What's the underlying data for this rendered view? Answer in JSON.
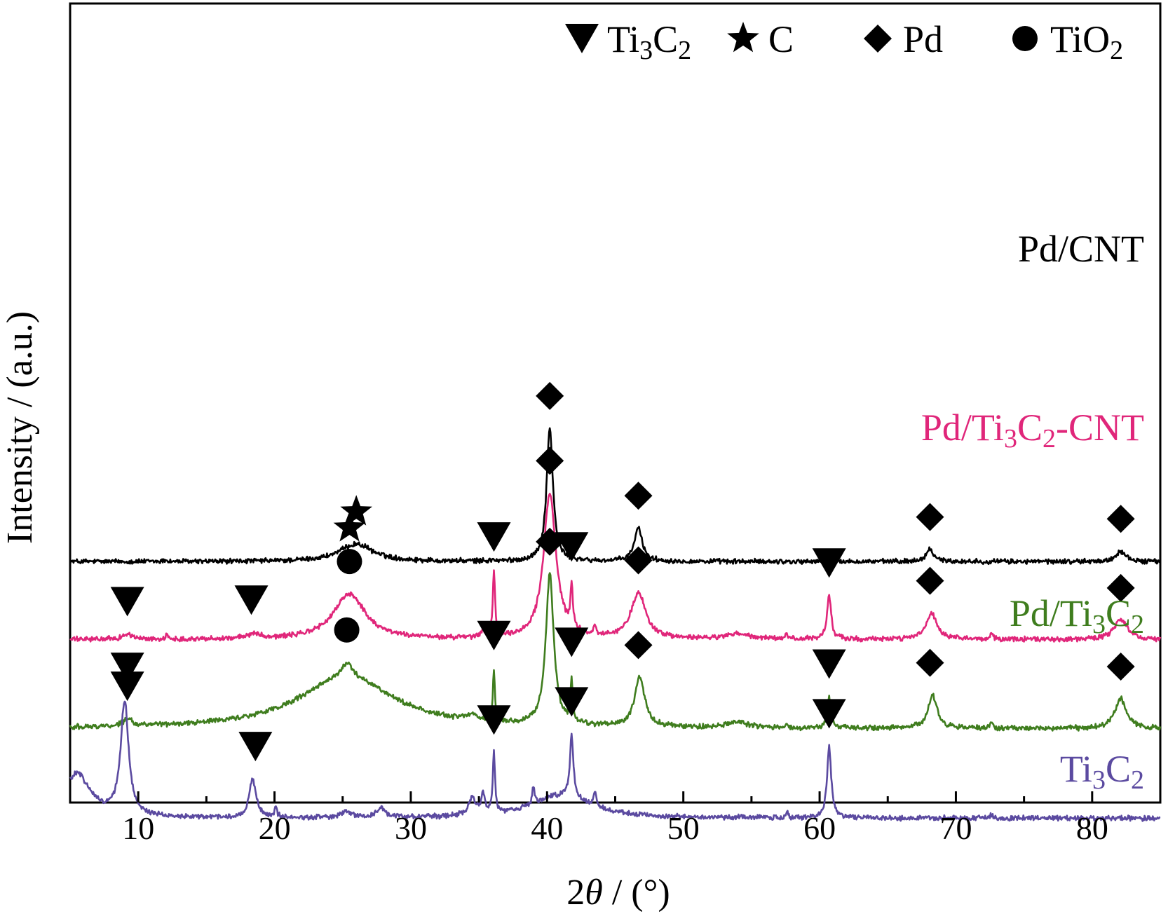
{
  "chart_data": {
    "type": "line",
    "xlabel_prefix": "2",
    "xlabel_symbol": "θ",
    "xlabel_suffix": " / (°)",
    "ylabel": "Intensity / (a.u.)",
    "xlim": [
      5,
      85
    ],
    "xticks": [
      "10",
      "20",
      "30",
      "40",
      "50",
      "60",
      "70",
      "80"
    ],
    "xtick_values": [
      10,
      20,
      30,
      40,
      50,
      60,
      70,
      80
    ],
    "legend": [
      {
        "marker": "down-triangle",
        "base": "Ti",
        "sub1": "3",
        "mid": "C",
        "sub2": "2",
        "tail": ""
      },
      {
        "marker": "star",
        "base": "C",
        "sub1": "",
        "mid": "",
        "sub2": "",
        "tail": ""
      },
      {
        "marker": "diamond",
        "base": "Pd",
        "sub1": "",
        "mid": "",
        "sub2": "",
        "tail": ""
      },
      {
        "marker": "circle",
        "base": "TiO",
        "sub1": "",
        "mid": "",
        "sub2": "2",
        "tail": ""
      }
    ],
    "series": [
      {
        "name_parts": {
          "base": "Pd/CNT",
          "sub1": "",
          "mid": "",
          "sub2": "",
          "tail": ""
        },
        "color": "#000000",
        "baseline": 0.915,
        "peaks": [
          [
            26,
            0.1,
            1.5
          ],
          [
            40.2,
            0.76,
            0.28
          ],
          [
            46.7,
            0.19,
            0.35
          ],
          [
            68.1,
            0.07,
            0.35
          ],
          [
            82.1,
            0.06,
            0.4
          ],
          [
            12.0,
            0.01,
            0.1
          ],
          [
            36.0,
            0.008,
            0.1
          ]
        ],
        "markers": [
          {
            "type": "star",
            "x": 26
          },
          {
            "type": "diamond",
            "x": 40.2
          },
          {
            "type": "diamond",
            "x": 46.7
          },
          {
            "type": "diamond",
            "x": 68.1
          },
          {
            "type": "diamond",
            "x": 82.1
          }
        ]
      },
      {
        "name_parts": {
          "base": "Pd/Ti",
          "sub1": "3",
          "mid": "C",
          "sub2": "2",
          "tail": "-CNT"
        },
        "color": "#e0267a",
        "baseline": 0.47,
        "peaks": [
          [
            25.5,
            0.26,
            1.4
          ],
          [
            40.2,
            0.83,
            0.55
          ],
          [
            36.1,
            0.38,
            0.1
          ],
          [
            41.8,
            0.25,
            0.1
          ],
          [
            46.7,
            0.26,
            0.65
          ],
          [
            60.7,
            0.25,
            0.18
          ],
          [
            68.2,
            0.15,
            0.45
          ],
          [
            82.1,
            0.11,
            0.6
          ],
          [
            9.2,
            0.03,
            0.4
          ],
          [
            18.5,
            0.03,
            0.5
          ],
          [
            35.3,
            0.06,
            0.1
          ],
          [
            43.5,
            0.06,
            0.1
          ],
          [
            72.6,
            0.04,
            0.1
          ],
          [
            57.6,
            0.03,
            0.1
          ],
          [
            54.0,
            0.03,
            1.0
          ],
          [
            12.1,
            0.02,
            0.1
          ]
        ],
        "markers": [
          {
            "type": "down-triangle",
            "x": 9.2
          },
          {
            "type": "down-triangle",
            "x": 18.3
          },
          {
            "type": "circle",
            "x": 25.5
          },
          {
            "type": "star",
            "x": 25.5
          },
          {
            "type": "down-triangle",
            "x": 36.1
          },
          {
            "type": "diamond",
            "x": 40.2
          },
          {
            "type": "down-triangle",
            "x": 41.8
          },
          {
            "type": "diamond",
            "x": 46.7
          },
          {
            "type": "down-triangle",
            "x": 60.7
          },
          {
            "type": "diamond",
            "x": 68.1
          },
          {
            "type": "diamond",
            "x": 82.1
          }
        ]
      },
      {
        "name_parts": {
          "base": "Pd/Ti",
          "sub1": "3",
          "mid": "C",
          "sub2": "2",
          "tail": ""
        },
        "color": "#3f7d1e",
        "baseline": -0.04,
        "peaks": [
          [
            25.3,
            0.3,
            4.2
          ],
          [
            40.2,
            0.86,
            0.35
          ],
          [
            36.1,
            0.3,
            0.08
          ],
          [
            41.8,
            0.25,
            0.08
          ],
          [
            46.8,
            0.28,
            0.45
          ],
          [
            60.7,
            0.18,
            0.15
          ],
          [
            68.3,
            0.19,
            0.4
          ],
          [
            82.1,
            0.17,
            0.5
          ],
          [
            25.3,
            0.08,
            0.4
          ],
          [
            9.2,
            0.04,
            0.4
          ],
          [
            34.5,
            0.03,
            0.5
          ],
          [
            72.6,
            0.04,
            0.1
          ],
          [
            57.6,
            0.03,
            0.1
          ],
          [
            54.0,
            0.03,
            1.0
          ]
        ],
        "markers": [
          {
            "type": "down-triangle",
            "x": 9.2
          },
          {
            "type": "circle",
            "x": 25.3
          },
          {
            "type": "down-triangle",
            "x": 36.1
          },
          {
            "type": "diamond",
            "x": 40.2
          },
          {
            "type": "down-triangle",
            "x": 41.8
          },
          {
            "type": "diamond",
            "x": 46.7
          },
          {
            "type": "down-triangle",
            "x": 60.7
          },
          {
            "type": "diamond",
            "x": 68.1
          },
          {
            "type": "diamond",
            "x": 82.1
          }
        ]
      },
      {
        "name_parts": {
          "base": "Ti",
          "sub1": "3",
          "mid": "C",
          "sub2": "2",
          "tail": ""
        },
        "color": "#5b4aa0",
        "baseline": -0.55,
        "peaks": [
          [
            9.0,
            0.65,
            0.35
          ],
          [
            5.5,
            0.25,
            1.2
          ],
          [
            18.4,
            0.22,
            0.3
          ],
          [
            36.1,
            0.34,
            0.1
          ],
          [
            41.8,
            0.36,
            0.15
          ],
          [
            60.7,
            0.41,
            0.18
          ],
          [
            41.0,
            0.13,
            2.6
          ],
          [
            34.5,
            0.1,
            0.3
          ],
          [
            35.3,
            0.12,
            0.15
          ],
          [
            39.0,
            0.1,
            0.1
          ],
          [
            43.5,
            0.08,
            0.15
          ],
          [
            20.1,
            0.06,
            0.1
          ],
          [
            27.8,
            0.05,
            0.4
          ],
          [
            25.3,
            0.03,
            0.5
          ],
          [
            57.6,
            0.03,
            0.1
          ],
          [
            72.6,
            0.02,
            0.1
          ]
        ],
        "markers": [
          {
            "type": "down-triangle",
            "x": 9.2
          },
          {
            "type": "down-triangle",
            "x": 18.6
          },
          {
            "type": "down-triangle",
            "x": 36.1
          },
          {
            "type": "down-triangle",
            "x": 41.8
          },
          {
            "type": "down-triangle",
            "x": 60.7
          }
        ]
      }
    ]
  }
}
